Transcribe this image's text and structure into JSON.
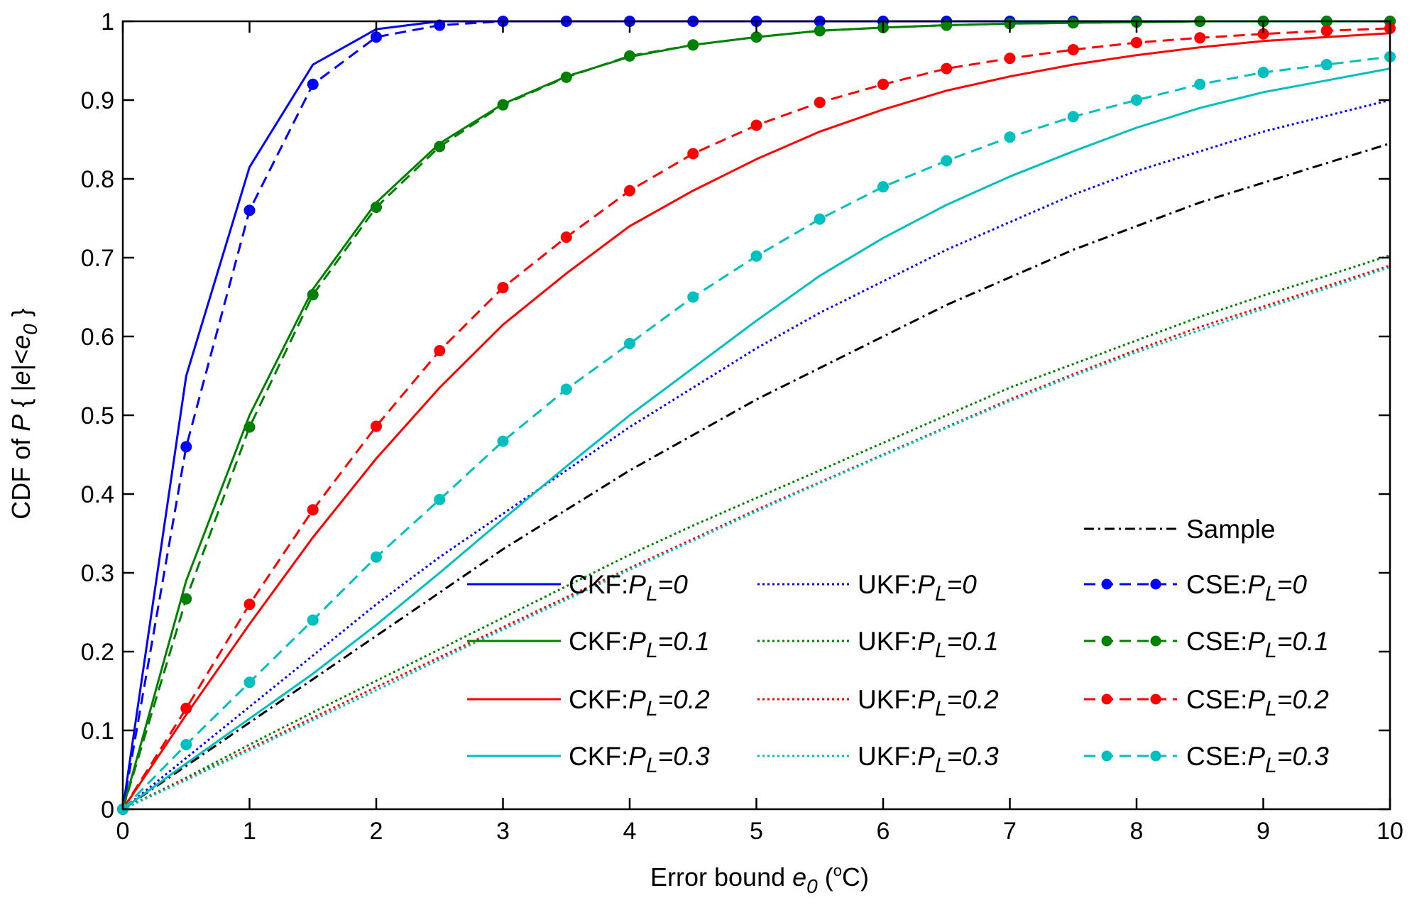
{
  "chart_data": {
    "type": "line",
    "xlabel": {
      "prefix": "Error bound ",
      "var": "e",
      "sub": "0",
      "suffix": " (",
      "deg": "o",
      "unit": "C)"
    },
    "ylabel": {
      "prefix": "CDF of ",
      "var": "P",
      "mid": " { |",
      "evar": "e",
      "bar": "|<",
      "e0var": "e",
      "sub": "0",
      "close": " }"
    },
    "xlim": [
      0,
      10
    ],
    "ylim": [
      0,
      1
    ],
    "xticks": [
      "0",
      "1",
      "2",
      "3",
      "4",
      "5",
      "6",
      "7",
      "8",
      "9",
      "10"
    ],
    "yticks": [
      "0",
      "0.1",
      "0.2",
      "0.3",
      "0.4",
      "0.5",
      "0.6",
      "0.7",
      "0.8",
      "0.9",
      "1"
    ],
    "x": [
      0,
      0.5,
      1,
      1.5,
      2,
      2.5,
      3,
      3.5,
      4,
      4.5,
      5,
      5.5,
      6,
      6.5,
      7,
      7.5,
      8,
      8.5,
      9,
      9.5,
      10
    ],
    "colors": {
      "blue": "#0000ff",
      "green": "#008000",
      "red": "#ff0000",
      "cyan": "#00bfbf",
      "black": "#000000"
    },
    "series": [
      {
        "name": "Sample",
        "method": "Sample",
        "pl": "",
        "color": "#000000",
        "style": "dashdot",
        "markers": false,
        "values": [
          0,
          0.055,
          0.11,
          0.165,
          0.22,
          0.275,
          0.33,
          0.38,
          0.43,
          0.475,
          0.52,
          0.56,
          0.6,
          0.64,
          0.675,
          0.71,
          0.74,
          0.77,
          0.795,
          0.82,
          0.845
        ]
      },
      {
        "name": "CKF:PL=0",
        "method": "CKF:",
        "pl": "=0",
        "color": "#0000ff",
        "style": "solid",
        "markers": false,
        "values": [
          0,
          0.55,
          0.815,
          0.945,
          0.99,
          1,
          1,
          1,
          1,
          1,
          1,
          1,
          1,
          1,
          1,
          1,
          1,
          1,
          1,
          1,
          1
        ]
      },
      {
        "name": "UKF:PL=0",
        "method": "UKF:",
        "pl": "=0",
        "color": "#0000ff",
        "style": "dotted",
        "markers": false,
        "values": [
          0,
          0.065,
          0.13,
          0.195,
          0.26,
          0.32,
          0.375,
          0.43,
          0.485,
          0.535,
          0.585,
          0.63,
          0.67,
          0.71,
          0.745,
          0.78,
          0.81,
          0.835,
          0.86,
          0.88,
          0.9
        ]
      },
      {
        "name": "CSE:PL=0",
        "method": "CSE:",
        "pl": "=0",
        "color": "#0000ff",
        "style": "dashed",
        "markers": true,
        "values": [
          0,
          0.46,
          0.76,
          0.92,
          0.98,
          0.995,
          1,
          1,
          1,
          1,
          1,
          1,
          1,
          1,
          1,
          1,
          1,
          1,
          1,
          1,
          1
        ]
      },
      {
        "name": "CKF:PL=0.1",
        "method": "CKF:",
        "pl": "=0.1",
        "color": "#008000",
        "style": "solid",
        "markers": false,
        "values": [
          0,
          0.29,
          0.5,
          0.66,
          0.77,
          0.845,
          0.895,
          0.93,
          0.955,
          0.97,
          0.98,
          0.988,
          0.992,
          0.995,
          0.997,
          0.998,
          0.999,
          1,
          1,
          1,
          1
        ]
      },
      {
        "name": "UKF:PL=0.1",
        "method": "UKF:",
        "pl": "=0.1",
        "color": "#008000",
        "style": "dotted",
        "markers": false,
        "values": [
          0,
          0.04,
          0.082,
          0.123,
          0.163,
          0.203,
          0.243,
          0.283,
          0.323,
          0.36,
          0.395,
          0.43,
          0.465,
          0.5,
          0.535,
          0.565,
          0.595,
          0.625,
          0.652,
          0.677,
          0.703
        ]
      },
      {
        "name": "CSE:PL=0.1",
        "method": "CSE:",
        "pl": "=0.1",
        "color": "#008000",
        "style": "dashed",
        "markers": true,
        "values": [
          0,
          0.267,
          0.485,
          0.653,
          0.764,
          0.841,
          0.894,
          0.929,
          0.956,
          0.97,
          0.98,
          0.988,
          0.992,
          0.995,
          0.997,
          0.998,
          0.999,
          1,
          1,
          1,
          1
        ]
      },
      {
        "name": "CKF:PL=0.2",
        "method": "CKF:",
        "pl": "=0.2",
        "color": "#ff0000",
        "style": "solid",
        "markers": false,
        "values": [
          0,
          0.12,
          0.235,
          0.345,
          0.445,
          0.535,
          0.615,
          0.68,
          0.74,
          0.785,
          0.825,
          0.86,
          0.888,
          0.912,
          0.93,
          0.945,
          0.957,
          0.967,
          0.975,
          0.98,
          0.985
        ]
      },
      {
        "name": "UKF:PL=0.2",
        "method": "UKF:",
        "pl": "=0.2",
        "color": "#ff0000",
        "style": "dotted",
        "markers": false,
        "values": [
          0,
          0.038,
          0.077,
          0.116,
          0.155,
          0.193,
          0.231,
          0.269,
          0.306,
          0.343,
          0.38,
          0.415,
          0.45,
          0.485,
          0.52,
          0.552,
          0.583,
          0.612,
          0.638,
          0.664,
          0.69
        ]
      },
      {
        "name": "CSE:PL=0.2",
        "method": "CSE:",
        "pl": "=0.2",
        "color": "#ff0000",
        "style": "dashed",
        "markers": true,
        "values": [
          0,
          0.128,
          0.26,
          0.38,
          0.486,
          0.582,
          0.662,
          0.726,
          0.785,
          0.832,
          0.868,
          0.897,
          0.92,
          0.94,
          0.953,
          0.964,
          0.973,
          0.979,
          0.984,
          0.988,
          0.991
        ]
      },
      {
        "name": "CKF:PL=0.3",
        "method": "CKF:",
        "pl": "=0.3",
        "color": "#00bfbf",
        "style": "solid",
        "markers": false,
        "values": [
          0,
          0.058,
          0.115,
          0.172,
          0.234,
          0.3,
          0.368,
          0.435,
          0.5,
          0.56,
          0.62,
          0.677,
          0.725,
          0.767,
          0.803,
          0.835,
          0.865,
          0.89,
          0.91,
          0.925,
          0.94
        ]
      },
      {
        "name": "UKF:PL=0.3",
        "method": "UKF:",
        "pl": "=0.3",
        "color": "#00bfbf",
        "style": "dotted",
        "markers": false,
        "values": [
          0,
          0.037,
          0.075,
          0.113,
          0.151,
          0.19,
          0.228,
          0.266,
          0.304,
          0.341,
          0.378,
          0.414,
          0.449,
          0.484,
          0.518,
          0.55,
          0.58,
          0.608,
          0.635,
          0.661,
          0.688
        ]
      },
      {
        "name": "CSE:PL=0.3",
        "method": "CSE:",
        "pl": "=0.3",
        "color": "#00bfbf",
        "style": "dashed",
        "markers": true,
        "values": [
          0,
          0.082,
          0.161,
          0.24,
          0.32,
          0.393,
          0.467,
          0.533,
          0.591,
          0.65,
          0.702,
          0.749,
          0.79,
          0.823,
          0.853,
          0.879,
          0.9,
          0.92,
          0.935,
          0.945,
          0.955
        ]
      }
    ],
    "legend": {
      "position": "bottom-right",
      "sample_label": "Sample",
      "sub_letter": "L",
      "pvar": "P",
      "rows": [
        [
          "CKF:PL=0",
          "UKF:PL=0",
          "CSE:PL=0"
        ],
        [
          "CKF:PL=0.1",
          "UKF:PL=0.1",
          "CSE:PL=0.1"
        ],
        [
          "CKF:PL=0.2",
          "UKF:PL=0.2",
          "CSE:PL=0.2"
        ],
        [
          "CKF:PL=0.3",
          "UKF:PL=0.3",
          "CSE:PL=0.3"
        ]
      ]
    }
  }
}
